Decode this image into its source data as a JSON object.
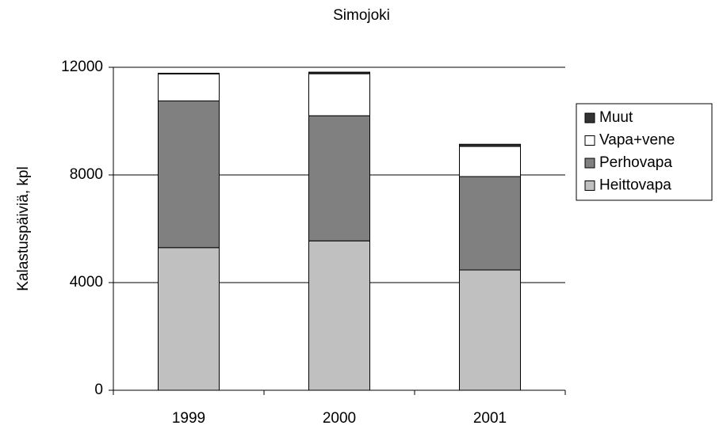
{
  "chart_data": {
    "type": "stacked_bar",
    "title": "Simojoki",
    "y_label": "Kalastuspäiviä, kpl",
    "categories": [
      "1999",
      "2000",
      "2001"
    ],
    "series": [
      {
        "name": "Heittovapa",
        "color": "#c0c0c0",
        "values": [
          5300,
          5550,
          4470
        ]
      },
      {
        "name": "Perhovapa",
        "color": "#808080",
        "values": [
          5450,
          4650,
          3470
        ]
      },
      {
        "name": "Vapa+vene",
        "color": "#ffffff",
        "values": [
          1000,
          1560,
          1120
        ]
      },
      {
        "name": "Muut",
        "color": "#333333",
        "values": [
          30,
          60,
          80
        ]
      }
    ],
    "ylim": [
      0,
      12000
    ],
    "yticks": [
      0,
      4000,
      8000,
      12000
    ],
    "grid": true,
    "legend": "right"
  }
}
